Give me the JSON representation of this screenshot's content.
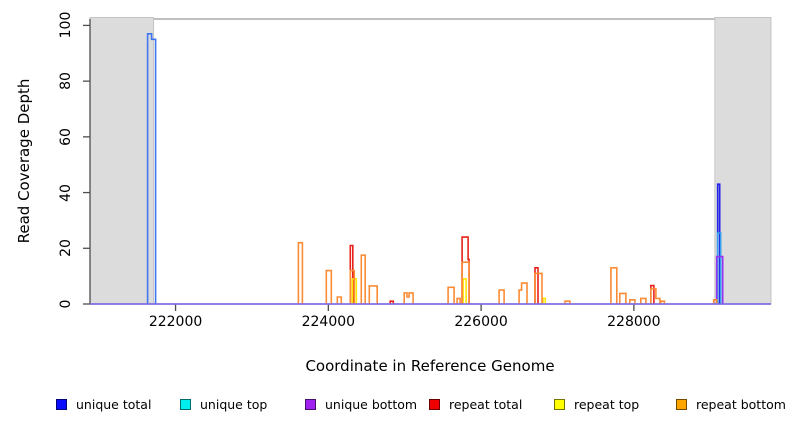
{
  "chart_data": {
    "type": "line",
    "subtype": "step-coverage-outline",
    "title": "",
    "xlabel": "Coordinate in Reference Genome",
    "ylabel": "Read Coverage Depth",
    "xlim": [
      220880,
      229795
    ],
    "ylim": [
      0,
      102.3
    ],
    "xticks": [
      222000,
      224000,
      226000,
      228000
    ],
    "yticks": [
      0,
      20,
      40,
      60,
      80,
      100
    ],
    "grid": false,
    "legend_position": "bottom",
    "colors": {
      "shaded_region_fill": "#dcdcdc",
      "shaded_region_border": "#c4c4c4",
      "axis": "#4d4d4d",
      "top_border": "#999999",
      "baseline": "#7b68ee"
    },
    "shaded_regions": [
      {
        "name": "left masked region",
        "x0": 220880,
        "x1": 221712
      },
      {
        "name": "right masked region",
        "x0": 229060,
        "x1": 229795
      }
    ],
    "baseline": {
      "y": 0,
      "color": "#7b68ee"
    },
    "series": [
      {
        "name": "unique total",
        "legend_color": "#0b0bff",
        "line_color": "#2222e8",
        "segments": [
          {
            "color": "#4076f0",
            "points": [
              [
                221634,
                0
              ],
              [
                221634,
                97
              ],
              [
                221686,
                97
              ],
              [
                221686,
                95
              ],
              [
                221739,
                95
              ],
              [
                221739,
                0
              ]
            ]
          },
          {
            "points": [
              [
                229097,
                0
              ],
              [
                229097,
                43
              ],
              [
                229123,
                43
              ],
              [
                229123,
                0
              ]
            ]
          }
        ]
      },
      {
        "name": "unique top",
        "legend_color": "#00eeee",
        "line_color": "#38a0f0",
        "segments": [
          {
            "points": [
              [
                229097,
                0
              ],
              [
                229097,
                25.5
              ],
              [
                229136,
                25.5
              ],
              [
                229136,
                0
              ]
            ]
          }
        ]
      },
      {
        "name": "unique bottom",
        "legend_color": "#a020f0",
        "line_color": "#9a30f0",
        "segments": [
          {
            "points": [
              [
                229084,
                0
              ],
              [
                229084,
                17
              ],
              [
                229163,
                17
              ],
              [
                229163,
                0
              ]
            ]
          }
        ]
      },
      {
        "name": "repeat total",
        "legend_color": "#ee0000",
        "line_color": "#e8221a",
        "segments": [
          {
            "points": [
              [
                224288,
                0
              ],
              [
                224288,
                21
              ],
              [
                224320,
                21
              ],
              [
                224320,
                0
              ]
            ]
          },
          {
            "points": [
              [
                224810,
                0
              ],
              [
                224810,
                1
              ],
              [
                224850,
                1
              ],
              [
                224850,
                0
              ]
            ]
          },
          {
            "points": [
              [
                225751,
                0
              ],
              [
                225751,
                24
              ],
              [
                225830,
                24
              ],
              [
                225830,
                16
              ],
              [
                225843,
                16
              ],
              [
                225843,
                0
              ]
            ]
          },
          {
            "points": [
              [
                226706,
                0
              ],
              [
                226706,
                13
              ],
              [
                226745,
                13
              ],
              [
                226745,
                0
              ]
            ]
          },
          {
            "points": [
              [
                228222,
                0
              ],
              [
                228222,
                6.6
              ],
              [
                228262,
                6.6
              ],
              [
                228262,
                0
              ]
            ]
          }
        ]
      },
      {
        "name": "repeat top",
        "legend_color": "#ffff00",
        "line_color": "#ffe400",
        "segments": [
          {
            "points": [
              [
                224314,
                0
              ],
              [
                224314,
                9
              ],
              [
                224366,
                9
              ],
              [
                224366,
                0
              ]
            ]
          },
          {
            "points": [
              [
                225764,
                0
              ],
              [
                225764,
                9
              ],
              [
                225804,
                9
              ],
              [
                225804,
                0
              ]
            ]
          },
          {
            "points": [
              [
                226810,
                0
              ],
              [
                226810,
                2
              ],
              [
                226840,
                2
              ],
              [
                226840,
                0
              ]
            ]
          }
        ]
      },
      {
        "name": "repeat bottom",
        "legend_color": "#ffa500",
        "line_color": "#fb8c35",
        "segments": [
          {
            "points": [
              [
                223608,
                0
              ],
              [
                223608,
                22
              ],
              [
                223660,
                22
              ],
              [
                223660,
                0
              ]
            ]
          },
          {
            "points": [
              [
                223974,
                0
              ],
              [
                223974,
                12
              ],
              [
                224039,
                12
              ],
              [
                224039,
                0
              ]
            ]
          },
          {
            "points": [
              [
                224118,
                0
              ],
              [
                224118,
                2.5
              ],
              [
                224170,
                2.5
              ],
              [
                224170,
                0
              ]
            ]
          },
          {
            "points": [
              [
                224288,
                0
              ],
              [
                224288,
                12
              ],
              [
                224340,
                12
              ],
              [
                224340,
                0
              ]
            ]
          },
          {
            "points": [
              [
                224431,
                0
              ],
              [
                224431,
                17.5
              ],
              [
                224483,
                17.5
              ],
              [
                224483,
                0
              ]
            ]
          },
          {
            "points": [
              [
                224536,
                0
              ],
              [
                224536,
                6.5
              ],
              [
                224640,
                6.5
              ],
              [
                224640,
                0
              ]
            ]
          },
          {
            "points": [
              [
                224993,
                0
              ],
              [
                224993,
                4
              ],
              [
                225030,
                4
              ],
              [
                225030,
                2.5
              ],
              [
                225058,
                2.5
              ],
              [
                225058,
                4
              ],
              [
                225110,
                4
              ],
              [
                225110,
                0
              ]
            ]
          },
          {
            "points": [
              [
                225568,
                0
              ],
              [
                225568,
                6
              ],
              [
                225647,
                6
              ],
              [
                225647,
                0
              ]
            ]
          },
          {
            "points": [
              [
                225686,
                0
              ],
              [
                225686,
                2
              ],
              [
                225725,
                2
              ],
              [
                225725,
                0
              ]
            ]
          },
          {
            "points": [
              [
                225751,
                0
              ],
              [
                225751,
                15
              ],
              [
                225843,
                15
              ],
              [
                225843,
                0
              ]
            ]
          },
          {
            "points": [
              [
                226235,
                0
              ],
              [
                226235,
                5
              ],
              [
                226301,
                5
              ],
              [
                226301,
                0
              ]
            ]
          },
          {
            "points": [
              [
                226497,
                0
              ],
              [
                226497,
                5
              ],
              [
                226530,
                5
              ],
              [
                226530,
                7.5
              ],
              [
                226601,
                7.5
              ],
              [
                226601,
                0
              ]
            ]
          },
          {
            "points": [
              [
                226706,
                0
              ],
              [
                226706,
                11
              ],
              [
                226797,
                11
              ],
              [
                226797,
                0
              ]
            ]
          },
          {
            "points": [
              [
                227098,
                0
              ],
              [
                227098,
                1
              ],
              [
                227163,
                1
              ],
              [
                227163,
                0
              ]
            ]
          },
          {
            "points": [
              [
                227699,
                0
              ],
              [
                227699,
                13
              ],
              [
                227777,
                13
              ],
              [
                227777,
                0
              ]
            ]
          },
          {
            "points": [
              [
                227816,
                0
              ],
              [
                227816,
                3.8
              ],
              [
                227895,
                3.8
              ],
              [
                227895,
                0
              ]
            ]
          },
          {
            "points": [
              [
                227947,
                0
              ],
              [
                227947,
                1.5
              ],
              [
                228013,
                1.5
              ],
              [
                228013,
                0
              ]
            ]
          },
          {
            "points": [
              [
                228091,
                0
              ],
              [
                228091,
                2
              ],
              [
                228157,
                2
              ],
              [
                228157,
                0
              ]
            ]
          },
          {
            "points": [
              [
                228222,
                0
              ],
              [
                228222,
                5.5
              ],
              [
                228288,
                5.5
              ],
              [
                228288,
                2
              ],
              [
                228340,
                2
              ],
              [
                228340,
                0
              ]
            ]
          },
          {
            "points": [
              [
                228353,
                0
              ],
              [
                228353,
                1
              ],
              [
                228400,
                1
              ],
              [
                228400,
                0
              ]
            ]
          },
          {
            "points": [
              [
                229045,
                0
              ],
              [
                229045,
                1.5
              ],
              [
                229084,
                1.5
              ],
              [
                229084,
                0
              ]
            ]
          }
        ]
      }
    ]
  }
}
